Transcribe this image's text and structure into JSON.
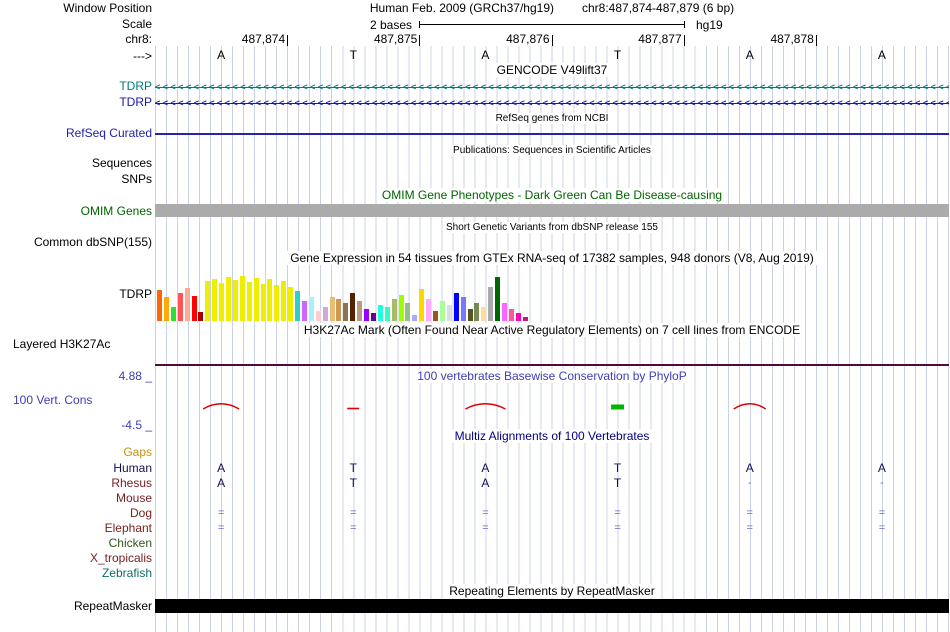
{
  "header": {
    "window_position_label": "Window Position",
    "assembly_title": "Human Feb. 2009 (GRCh37/hg19)",
    "position_title": "chr8:487,874-487,879 (6 bp)",
    "scale_label": "Scale",
    "scale_value": "2 bases",
    "assembly_short": "hg19",
    "chrom_label": "chr8:",
    "direction_label": "--->",
    "coordinates": [
      "487,874",
      "487,875",
      "487,876",
      "487,877",
      "487,878"
    ],
    "sequence": [
      "A",
      "T",
      "A",
      "T",
      "A",
      "A"
    ]
  },
  "gencode": {
    "title": "GENCODE V49lift37",
    "strand_char": "<",
    "transcripts": [
      {
        "label": "TDRP",
        "color": "#007c7c"
      },
      {
        "label": "TDRP",
        "color": "#1616b4"
      }
    ]
  },
  "refseq": {
    "title": "RefSeq genes from NCBI",
    "label": "RefSeq Curated",
    "color": "#2222aa"
  },
  "publications": {
    "title": "Publications: Sequences in Scientific Articles",
    "row_labels": [
      "Sequences",
      "SNPs"
    ]
  },
  "omim": {
    "title": "OMIM Gene Phenotypes - Dark Green Can Be Disease-causing",
    "label": "OMIM Genes",
    "title_color": "#006400",
    "bar_color": "#ababab"
  },
  "dbsnp": {
    "title": "Short Genetic Variants from dbSNP release 155",
    "label": "Common dbSNP(155)"
  },
  "gtex": {
    "title": "Gene Expression in 54 tissues from GTEx RNA-seq of 17382 samples, 948 donors (V8, Aug 2019)",
    "label": "TDRP"
  },
  "h3k27ac": {
    "title": "H3K27Ac Mark (Often Found Near Active Regulatory Elements) on 7 cell lines from ENCODE",
    "label": "Layered H3K27Ac",
    "line_color": "#520a3c"
  },
  "phylop": {
    "title": "100 vertebrates Basewise Conservation by PhyloP",
    "label": "100 Vert. Cons",
    "max_label": "4.88 _",
    "min_label": "-4.5 _",
    "text_color": "#3d3db8",
    "marks": [
      {
        "type": "arc",
        "base": 0,
        "width": 36,
        "color": "#dd0000"
      },
      {
        "type": "dash",
        "base": 1,
        "width": 12,
        "color": "#dd0000"
      },
      {
        "type": "arc",
        "base": 2,
        "width": 40,
        "color": "#dd0000"
      },
      {
        "type": "bar",
        "base": 3,
        "width": 13,
        "color": "#00b400"
      },
      {
        "type": "arc",
        "base": 4,
        "width": 32,
        "color": "#dd0000"
      }
    ]
  },
  "multiz": {
    "title": "Multiz Alignments of 100 Vertebrates",
    "title_color": "#000080",
    "gaps_label": "Gaps",
    "gaps_color": "#c69214",
    "letter_color": "#101050",
    "symbol_color": "#6a6ace",
    "rows": [
      {
        "name": "Human",
        "color": "#101050",
        "cells": [
          "A",
          "T",
          "A",
          "T",
          "A",
          "A"
        ]
      },
      {
        "name": "Rhesus",
        "color": "#782020",
        "cells": [
          "A",
          "T",
          "A",
          "T",
          "-",
          "-"
        ]
      },
      {
        "name": "Mouse",
        "color": "#782020",
        "cells": [
          "",
          "",
          "",
          "",
          "",
          ""
        ]
      },
      {
        "name": "Dog",
        "color": "#782020",
        "cells": [
          "=",
          "=",
          "=",
          "=",
          "=",
          "="
        ]
      },
      {
        "name": "Elephant",
        "color": "#782020",
        "cells": [
          "=",
          "=",
          "=",
          "=",
          "=",
          "="
        ]
      },
      {
        "name": "Chicken",
        "color": "#34571c",
        "cells": [
          "",
          "",
          "",
          "",
          "",
          ""
        ]
      },
      {
        "name": "X_tropicalis",
        "color": "#782020",
        "cells": [
          "",
          "",
          "",
          "",
          "",
          ""
        ]
      },
      {
        "name": "Zebrafish",
        "color": "#0e6d6d",
        "cells": [
          "",
          "",
          "",
          "",
          "",
          ""
        ]
      }
    ]
  },
  "repeatmasker": {
    "title": "Repeating Elements by RepeatMasker",
    "label": "RepeatMasker",
    "bar_color": "#000000"
  },
  "chart_data": {
    "type": "bar",
    "title": "Gene Expression in 54 tissues from GTEx RNA-seq of 17382 samples, 948 donors (V8, Aug 2019)",
    "gene": "TDRP",
    "xlabel": "",
    "ylabel": "",
    "axis_labeled": false,
    "value_units": "display pixels (no numeric axis shown in image)",
    "colors": [
      "#FF6600",
      "#FFAA00",
      "#33DD33",
      "#FF5555",
      "#FFAA99",
      "#FF0000",
      "#AA0000",
      "#EEEE00",
      "#EEEE00",
      "#EEEE00",
      "#EEEE00",
      "#EEEE00",
      "#EEEE00",
      "#EEEE00",
      "#EEEE00",
      "#EEEE00",
      "#EEEE00",
      "#EEEE00",
      "#EEEE00",
      "#EEEE00",
      "#33CCCC",
      "#CC66FF",
      "#AAEEFF",
      "#FFCCCC",
      "#CCAADD",
      "#EEBB77",
      "#CC9955",
      "#8B7355",
      "#552200",
      "#BB9988",
      "#9900FF",
      "#660099",
      "#22FFDD",
      "#33FFC2",
      "#AABB66",
      "#99FF00",
      "#99BB88",
      "#AAAAFF",
      "#FFD700",
      "#FFAAFF",
      "#995522",
      "#AAFF99",
      "#DDDDDD",
      "#0000FF",
      "#7777FF",
      "#555522",
      "#778855",
      "#FFDD99",
      "#AAAAAA",
      "#006600",
      "#FF66FF",
      "#FF5599",
      "#FF00BB",
      "#C71585"
    ],
    "values": [
      31,
      24,
      14,
      28,
      33,
      25,
      9,
      40,
      42,
      38,
      44,
      41,
      45,
      39,
      43,
      37,
      42,
      36,
      40,
      34,
      30,
      20,
      24,
      10,
      14,
      24,
      22,
      18,
      28,
      20,
      12,
      8,
      16,
      14,
      22,
      26,
      18,
      6,
      32,
      22,
      10,
      20,
      16,
      28,
      24,
      12,
      18,
      14,
      34,
      44,
      18,
      12,
      8,
      4
    ]
  }
}
